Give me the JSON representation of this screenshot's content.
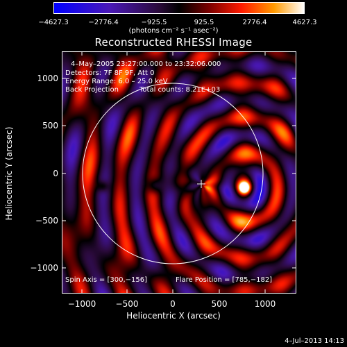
{
  "colorbar": {
    "ticks": [
      "−4627.3",
      "−2776.4",
      "−925.5",
      "925.5",
      "2776.4",
      "4627.3"
    ],
    "units": "(photons cm⁻² s⁻¹ asec⁻²)"
  },
  "title": "Reconstructed RHESSI Image",
  "info": {
    "time_range": "4–May–2005 23:27:00.000 to 23:32:06.000",
    "detectors": "Detectors: 7F 8F 9F, Att 0",
    "energy": "Energy Range: 6.0 – 25.0 keV",
    "method": "Back Projection",
    "counts": "Total counts: 8.21E+03",
    "spin_axis": "Spin Axis = [300,−156]",
    "flare_position": "Flare Position = [785,−182]"
  },
  "axes": {
    "ylabel": "Heliocentric Y (arcsec)",
    "xlabel": "Heliocentric X (arcsec)",
    "yticks": [
      "1000",
      "500",
      "0",
      "−500",
      "−1000"
    ],
    "xticks": [
      "−1000",
      "−500",
      "0",
      "500",
      "1000"
    ]
  },
  "timestamp": "4–Jul–2013 14:13"
}
